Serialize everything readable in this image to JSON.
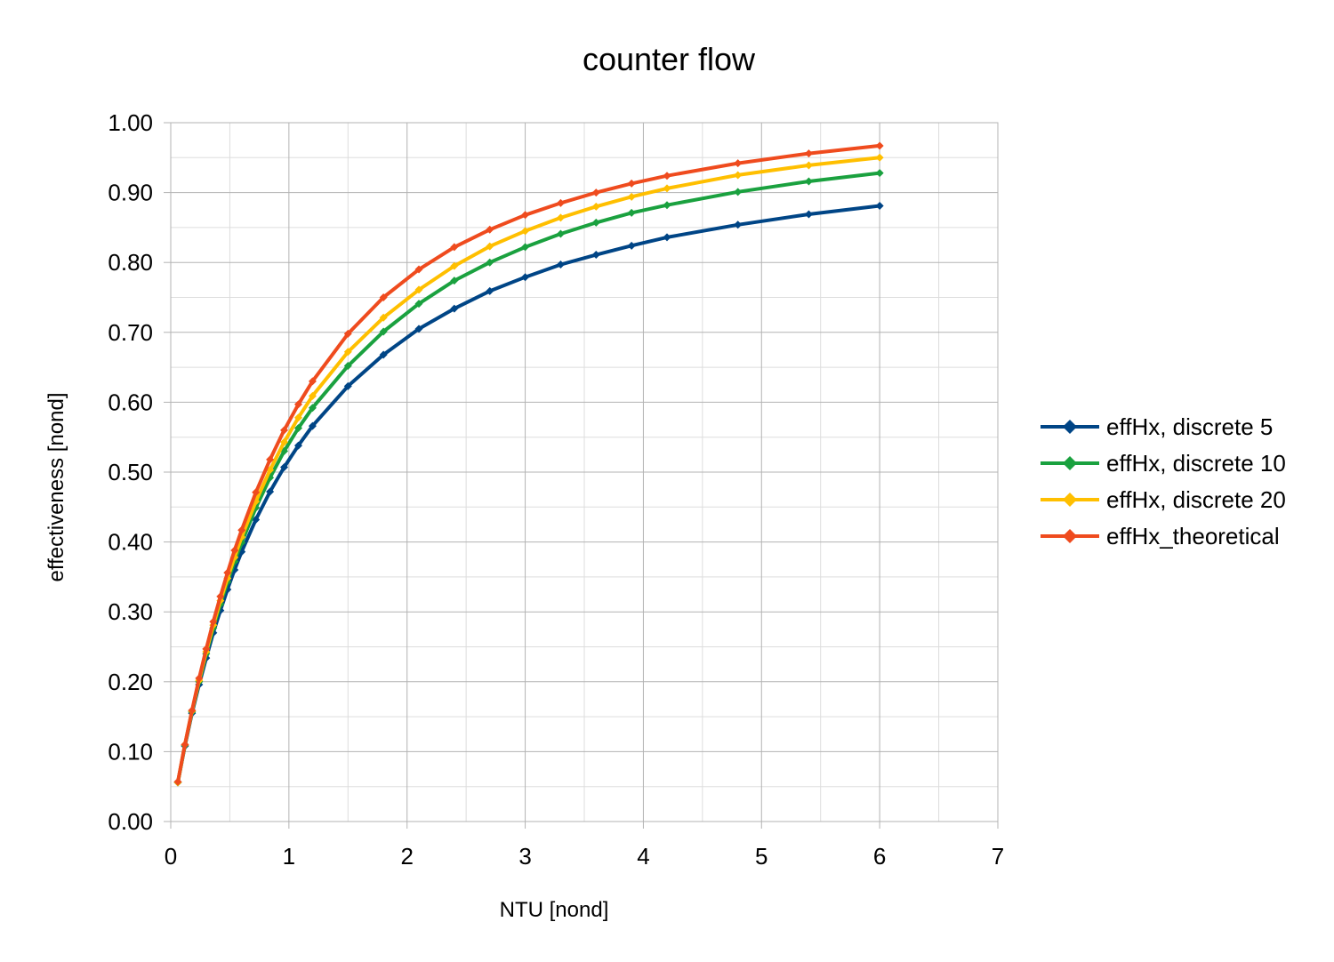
{
  "chart_data": {
    "type": "line",
    "title": "counter flow",
    "xlabel": "NTU [nond]",
    "ylabel": "effectiveness [nond]",
    "xlim": [
      0,
      7
    ],
    "ylim": [
      0,
      1
    ],
    "x_ticks": [
      "0",
      "1",
      "2",
      "3",
      "4",
      "5",
      "6",
      "7"
    ],
    "y_ticks": [
      "0.00",
      "0.10",
      "0.20",
      "0.30",
      "0.40",
      "0.50",
      "0.60",
      "0.70",
      "0.80",
      "0.90",
      "1.00"
    ],
    "grid": true,
    "minor_grid": true,
    "legend_position": "right",
    "x": [
      0.06,
      0.12,
      0.18,
      0.24,
      0.3,
      0.36,
      0.42,
      0.48,
      0.54,
      0.6,
      0.72,
      0.84,
      0.96,
      1.08,
      1.2,
      1.5,
      1.8,
      2.1,
      2.4,
      2.7,
      3.0,
      3.3,
      3.6,
      3.9,
      4.2,
      4.8,
      5.4,
      6.0
    ],
    "series": [
      {
        "name": "effHx, discrete 5",
        "color": "#004586",
        "values": [
          0.056,
          0.108,
          0.155,
          0.196,
          0.234,
          0.27,
          0.302,
          0.332,
          0.36,
          0.386,
          0.432,
          0.472,
          0.507,
          0.538,
          0.566,
          0.623,
          0.668,
          0.705,
          0.734,
          0.759,
          0.779,
          0.797,
          0.811,
          0.824,
          0.836,
          0.854,
          0.869,
          0.881
        ]
      },
      {
        "name": "effHx, discrete 10",
        "color": "#1aa13f",
        "values": [
          0.056,
          0.109,
          0.157,
          0.2,
          0.24,
          0.277,
          0.311,
          0.343,
          0.372,
          0.399,
          0.449,
          0.492,
          0.53,
          0.563,
          0.592,
          0.652,
          0.701,
          0.741,
          0.774,
          0.8,
          0.822,
          0.841,
          0.857,
          0.871,
          0.882,
          0.901,
          0.916,
          0.928
        ]
      },
      {
        "name": "effHx, discrete 20",
        "color": "#ffbf00",
        "values": [
          0.056,
          0.11,
          0.158,
          0.202,
          0.243,
          0.281,
          0.316,
          0.348,
          0.378,
          0.407,
          0.458,
          0.503,
          0.543,
          0.578,
          0.609,
          0.672,
          0.721,
          0.761,
          0.795,
          0.823,
          0.845,
          0.864,
          0.88,
          0.894,
          0.906,
          0.925,
          0.939,
          0.95
        ]
      },
      {
        "name": "effHx_theoretical",
        "color": "#ef4b1e",
        "values": [
          0.057,
          0.11,
          0.159,
          0.205,
          0.247,
          0.286,
          0.322,
          0.356,
          0.388,
          0.417,
          0.471,
          0.518,
          0.56,
          0.597,
          0.63,
          0.698,
          0.75,
          0.79,
          0.822,
          0.847,
          0.868,
          0.885,
          0.9,
          0.913,
          0.924,
          0.942,
          0.956,
          0.967
        ]
      }
    ]
  }
}
